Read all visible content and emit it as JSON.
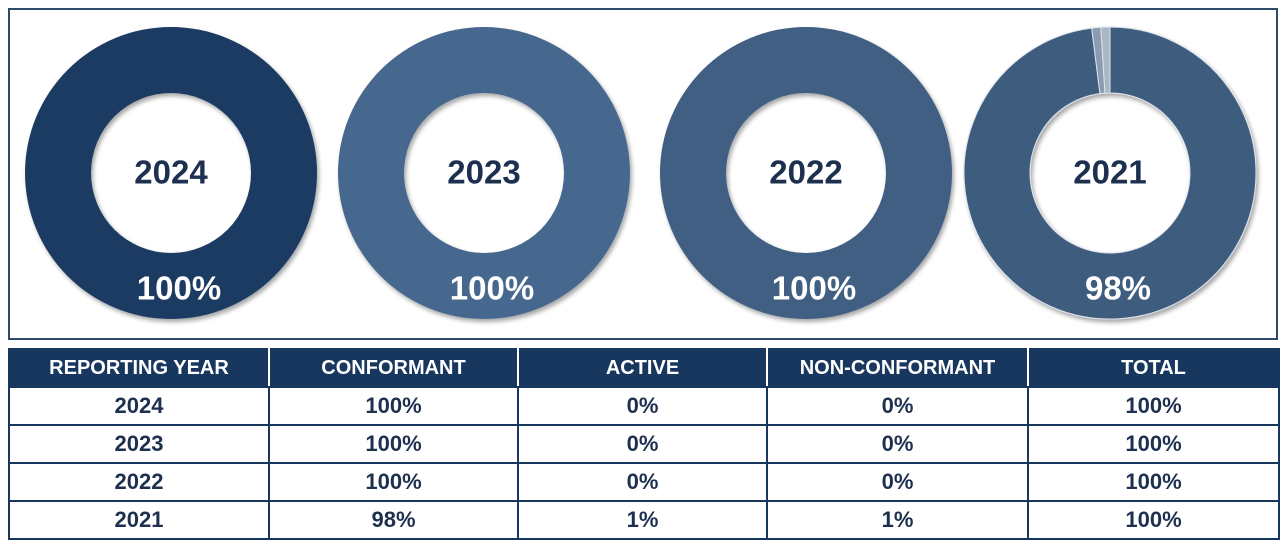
{
  "chart_data": [
    {
      "type": "donut",
      "title": "2024",
      "values": [
        100,
        0,
        0
      ],
      "value_labels": [
        "100%",
        null,
        null
      ],
      "colors": [
        "#1b3b62",
        "#8b9cb2",
        "#aab6c6"
      ]
    },
    {
      "type": "donut",
      "title": "2023",
      "values": [
        100,
        0,
        0
      ],
      "value_labels": [
        "100%",
        null,
        null
      ],
      "colors": [
        "#47688e",
        "#8b9cb2",
        "#aab6c6"
      ]
    },
    {
      "type": "donut",
      "title": "2022",
      "values": [
        100,
        0,
        0
      ],
      "value_labels": [
        "100%",
        null,
        null
      ],
      "colors": [
        "#3f5e82",
        "#8b9cb2",
        "#aab6c6"
      ]
    },
    {
      "type": "donut",
      "title": "2021",
      "values": [
        98,
        1,
        1
      ],
      "value_labels": [
        "98%",
        null,
        null
      ],
      "colors": [
        "#3e5b7e",
        "#8b9cb2",
        "#aab6c6"
      ]
    }
  ],
  "table": {
    "headers": [
      "REPORTING YEAR",
      "CONFORMANT",
      "ACTIVE",
      "NON-CONFORMANT",
      "TOTAL"
    ],
    "rows": [
      [
        "2024",
        "100%",
        "0%",
        "0%",
        "100%"
      ],
      [
        "2023",
        "100%",
        "0%",
        "0%",
        "100%"
      ],
      [
        "2022",
        "100%",
        "0%",
        "0%",
        "100%"
      ],
      [
        "2021",
        "98%",
        "1%",
        "1%",
        "100%"
      ]
    ]
  }
}
